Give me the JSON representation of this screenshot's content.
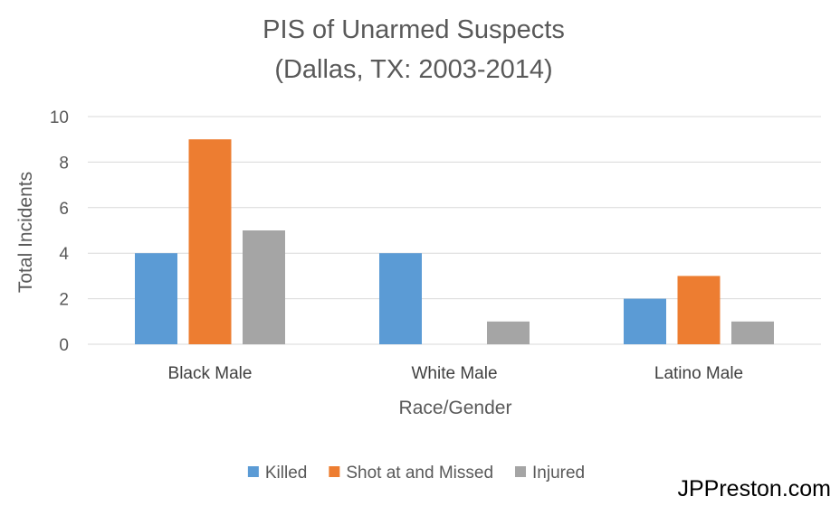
{
  "chart_data": {
    "type": "bar",
    "title_line1": "PIS of Unarmed Suspects",
    "title_line2": "(Dallas, TX: 2003-2014)",
    "xlabel": "Race/Gender",
    "ylabel": "Total Incidents",
    "categories": [
      "Black Male",
      "White Male",
      "Latino Male"
    ],
    "series": [
      {
        "name": "Killed",
        "color": "#5B9BD5",
        "values": [
          4,
          4,
          2
        ]
      },
      {
        "name": "Shot at and Missed",
        "color": "#ED7D31",
        "values": [
          9,
          0,
          3
        ]
      },
      {
        "name": "Injured",
        "color": "#A5A5A5",
        "values": [
          5,
          1,
          1
        ]
      }
    ],
    "ylim": [
      0,
      10
    ],
    "yticks": [
      "0",
      "2",
      "4",
      "6",
      "8",
      "10"
    ],
    "grid": true,
    "legend_position": "bottom"
  },
  "watermark": "JPPreston.com",
  "colors": {
    "grid": "#D9D9D9",
    "text": "#595959",
    "axis_text": "#404040"
  }
}
